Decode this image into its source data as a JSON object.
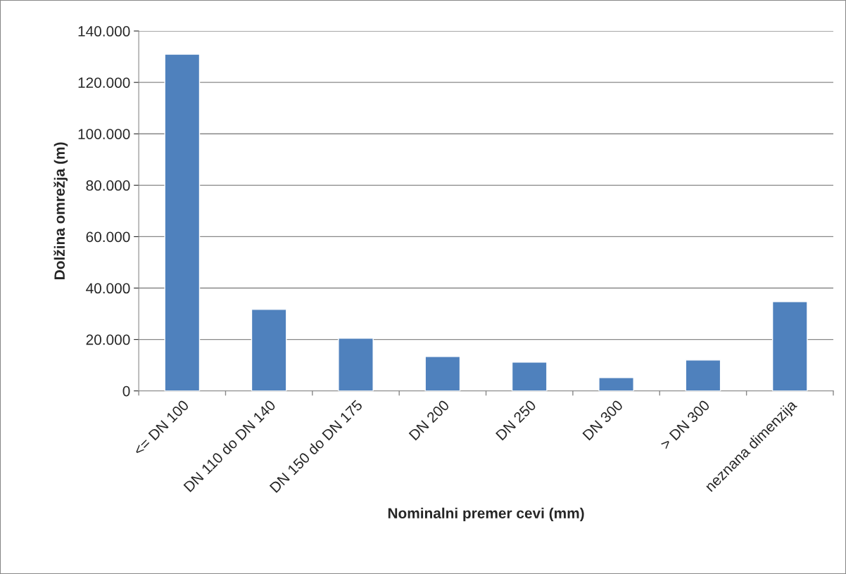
{
  "chart_data": {
    "type": "bar",
    "xlabel": "Nominalni premer cevi (mm)",
    "ylabel": "Dolžina omrežja (m)",
    "categories": [
      "<= DN 100",
      "DN 110 do DN 140",
      "DN 150 do DN 175",
      "DN 200",
      "DN 250",
      "DN 300",
      "> DN 300",
      "neznana dimenzija"
    ],
    "values": [
      131000,
      31700,
      20500,
      13400,
      11200,
      5200,
      12000,
      34700
    ],
    "color": "#4f81bd",
    "ylim": [
      0,
      140000
    ],
    "yticks": [
      0,
      {
        "value": 20000,
        "label": "20.000"
      },
      {
        "value": 40000,
        "label": "40.000"
      },
      {
        "value": 60000,
        "label": "60.000"
      },
      {
        "value": 80000,
        "label": "80.000"
      },
      {
        "value": 100000,
        "label": "100.000"
      },
      {
        "value": 120000,
        "label": "120.000"
      },
      {
        "value": 140000,
        "label": "140.000"
      }
    ],
    "grid": "y"
  }
}
